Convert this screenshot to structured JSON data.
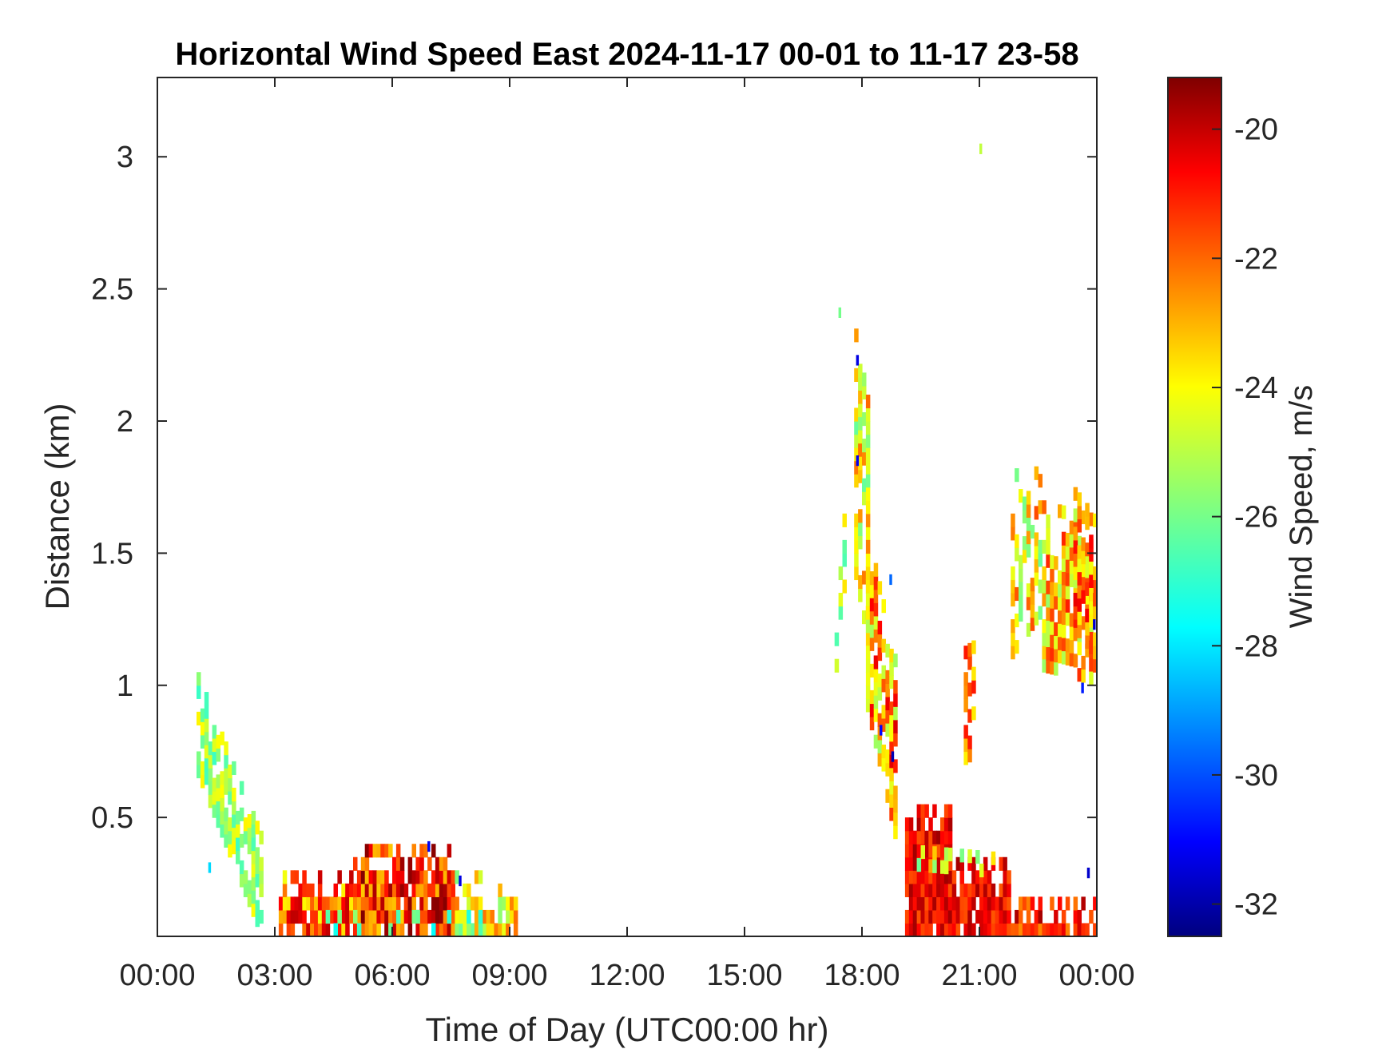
{
  "chart_data": {
    "type": "heatmap",
    "title": "Horizontal Wind Speed East 2024-11-17 00-01 to 11-17 23-58",
    "xlabel": "Time of Day (UTC00:00 hr)",
    "ylabel": "Distance (km)",
    "colorbar_label": "Wind Speed, m/s",
    "xlim_hours": [
      0,
      24
    ],
    "ylim_km": [
      0.05,
      3.3
    ],
    "colorbar_range": [
      -32.5,
      -19.2
    ],
    "colormap": "jet",
    "colorbar_position": "right",
    "grid": false,
    "x_ticks": [
      {
        "value": 0,
        "label": "00:00"
      },
      {
        "value": 3,
        "label": "03:00"
      },
      {
        "value": 6,
        "label": "06:00"
      },
      {
        "value": 9,
        "label": "09:00"
      },
      {
        "value": 12,
        "label": "12:00"
      },
      {
        "value": 15,
        "label": "15:00"
      },
      {
        "value": 18,
        "label": "18:00"
      },
      {
        "value": 21,
        "label": "21:00"
      },
      {
        "value": 24,
        "label": "00:00"
      }
    ],
    "y_ticks": [
      {
        "value": 0.5,
        "label": "0.5"
      },
      {
        "value": 1,
        "label": "1"
      },
      {
        "value": 1.5,
        "label": "1.5"
      },
      {
        "value": 2,
        "label": "2"
      },
      {
        "value": 2.5,
        "label": "2.5"
      },
      {
        "value": 3,
        "label": "3"
      }
    ],
    "colorbar_ticks": [
      {
        "value": -20,
        "label": "-20"
      },
      {
        "value": -22,
        "label": "-22"
      },
      {
        "value": -24,
        "label": "-24"
      },
      {
        "value": -26,
        "label": "-26"
      },
      {
        "value": -28,
        "label": "-28"
      },
      {
        "value": -30,
        "label": "-30"
      },
      {
        "value": -32,
        "label": "-32"
      }
    ],
    "cell_size": {
      "hours": 0.1,
      "km": 0.05
    },
    "patches": [
      {
        "t0": 1.0,
        "t1": 2.7,
        "base0": 0.65,
        "base1": 0.05,
        "thick": 0.38,
        "v": -25.4,
        "amp": 1.4,
        "density": 0.78
      },
      {
        "t0": 3.1,
        "t1": 5.0,
        "base0": 0.05,
        "base1": 0.05,
        "thick": 0.26,
        "v": -22.2,
        "amp": 2.2,
        "density": 0.84
      },
      {
        "t0": 5.0,
        "t1": 7.6,
        "base0": 0.05,
        "base1": 0.05,
        "thick": 0.36,
        "v": -21.4,
        "amp": 2.2,
        "density": 0.86
      },
      {
        "t0": 7.6,
        "t1": 9.2,
        "base0": 0.05,
        "base1": 0.05,
        "thick": 0.24,
        "v": -24.2,
        "amp": 2.0,
        "density": 0.72
      },
      {
        "t0": 4.2,
        "t1": 8.6,
        "base0": 0.05,
        "base1": 0.05,
        "thick": 0.1,
        "v": -26.5,
        "amp": 1.0,
        "density": 0.5
      },
      {
        "t0": 17.3,
        "t1": 17.6,
        "base0": 1.05,
        "base1": 1.35,
        "thick": 0.3,
        "v": -25.0,
        "amp": 1.5,
        "density": 0.5
      },
      {
        "t0": 17.8,
        "t1": 18.25,
        "base0": 1.4,
        "base1": 1.15,
        "thick": 0.95,
        "v": -24.2,
        "amp": 2.0,
        "density": 0.7
      },
      {
        "t0": 18.1,
        "t1": 18.9,
        "base0": 0.9,
        "base1": 0.42,
        "thick": 0.7,
        "v": -23.0,
        "amp": 2.6,
        "density": 0.75
      },
      {
        "t0": 19.1,
        "t1": 20.3,
        "base0": 0.05,
        "base1": 0.05,
        "thick": 0.52,
        "v": -20.8,
        "amp": 1.2,
        "density": 0.95
      },
      {
        "t0": 20.3,
        "t1": 21.8,
        "base0": 0.05,
        "base1": 0.05,
        "thick": 0.3,
        "v": -20.9,
        "amp": 1.2,
        "density": 0.95
      },
      {
        "t0": 21.8,
        "t1": 24.0,
        "base0": 0.05,
        "base1": 0.05,
        "thick": 0.16,
        "v": -21.2,
        "amp": 1.5,
        "density": 0.9
      },
      {
        "t0": 19.1,
        "t1": 21.5,
        "base0": 0.3,
        "base1": 0.27,
        "thick": 0.12,
        "v": -24.5,
        "amp": 1.6,
        "density": 0.6
      },
      {
        "t0": 20.6,
        "t1": 20.9,
        "base0": 0.7,
        "base1": 0.72,
        "thick": 0.45,
        "v": -22.6,
        "amp": 1.5,
        "density": 0.7
      },
      {
        "t0": 21.8,
        "t1": 22.6,
        "base0": 1.1,
        "base1": 1.25,
        "thick": 0.7,
        "v": -24.0,
        "amp": 2.2,
        "density": 0.6
      },
      {
        "t0": 22.6,
        "t1": 24.0,
        "base0": 1.05,
        "base1": 1.0,
        "thick": 0.65,
        "v": -23.4,
        "amp": 2.2,
        "density": 0.75
      },
      {
        "t0": 23.4,
        "t1": 24.0,
        "base0": 1.2,
        "base1": 1.1,
        "thick": 0.55,
        "v": -22.6,
        "amp": 2.0,
        "density": 0.7
      }
    ],
    "points": [
      {
        "t": 17.4,
        "km": 2.38,
        "v": -26.0
      },
      {
        "t": 17.85,
        "km": 2.2,
        "v": -31.2
      },
      {
        "t": 17.85,
        "km": 1.82,
        "v": -31.0
      },
      {
        "t": 18.45,
        "km": 0.8,
        "v": -30.8
      },
      {
        "t": 18.75,
        "km": 0.7,
        "v": -31.8
      },
      {
        "t": 18.7,
        "km": 1.37,
        "v": -29.5
      },
      {
        "t": 21.0,
        "km": 3.0,
        "v": -25.0
      },
      {
        "t": 23.6,
        "km": 0.96,
        "v": -30.5
      },
      {
        "t": 23.9,
        "km": 1.2,
        "v": -31.5
      },
      {
        "t": 6.9,
        "km": 0.36,
        "v": -31.0
      },
      {
        "t": 7.7,
        "km": 0.23,
        "v": -31.2
      },
      {
        "t": 23.75,
        "km": 0.26,
        "v": -31.5
      },
      {
        "t": 1.3,
        "km": 0.28,
        "v": -28.0
      }
    ]
  }
}
